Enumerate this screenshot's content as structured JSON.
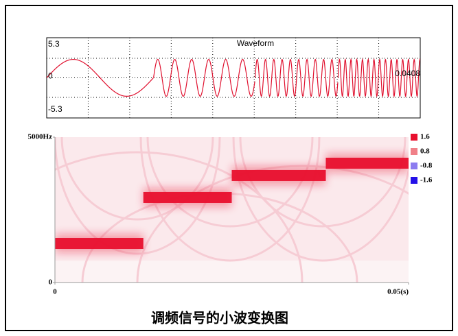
{
  "chart_data": [
    {
      "type": "line",
      "title": "Waveform",
      "color": "#e0102e",
      "xlim": [
        0,
        0.05
      ],
      "ylim": [
        -5.3,
        5.3
      ],
      "yticks": [
        5.3,
        0,
        -5.3
      ],
      "annotation": "0.0408",
      "segments": [
        {
          "start": 0,
          "end": 0.0143,
          "frequency": 70,
          "amplitude": 5
        },
        {
          "start": 0.0143,
          "end": 0.0279,
          "frequency": 440,
          "amplitude": 5
        },
        {
          "start": 0.0279,
          "end": 0.039,
          "frequency": 900,
          "amplitude": 5
        },
        {
          "start": 0.039,
          "end": 0.05,
          "frequency": 1300,
          "amplitude": 5
        }
      ]
    },
    {
      "type": "heatmap",
      "xlim": [
        0,
        0.05
      ],
      "xticks": [
        0,
        {
          "value": 0.05,
          "label": "0.05(s)"
        }
      ],
      "ylim": [
        0,
        5000
      ],
      "yticks": [
        {
          "value": 5000,
          "label": "5000Hz"
        },
        0
      ],
      "bands": [
        {
          "start": 0,
          "end": 0.0125,
          "frequency": 1344,
          "magnitude": 1.6
        },
        {
          "start": 0.0125,
          "end": 0.025,
          "frequency": 2925,
          "magnitude": 1.6
        },
        {
          "start": 0.025,
          "end": 0.0383,
          "frequency": 3680,
          "magnitude": 1.6
        },
        {
          "start": 0.0383,
          "end": 0.05,
          "frequency": 4104,
          "magnitude": 1.6
        }
      ],
      "colorscale": [
        {
          "value": 1.6,
          "color": "#e8102e"
        },
        {
          "value": 0.8,
          "color": "#f08088"
        },
        {
          "value": -0.8,
          "color": "#8c7cf0"
        },
        {
          "value": -1.6,
          "color": "#2410e8"
        }
      ]
    }
  ],
  "caption": "调频信号的小波变换图"
}
